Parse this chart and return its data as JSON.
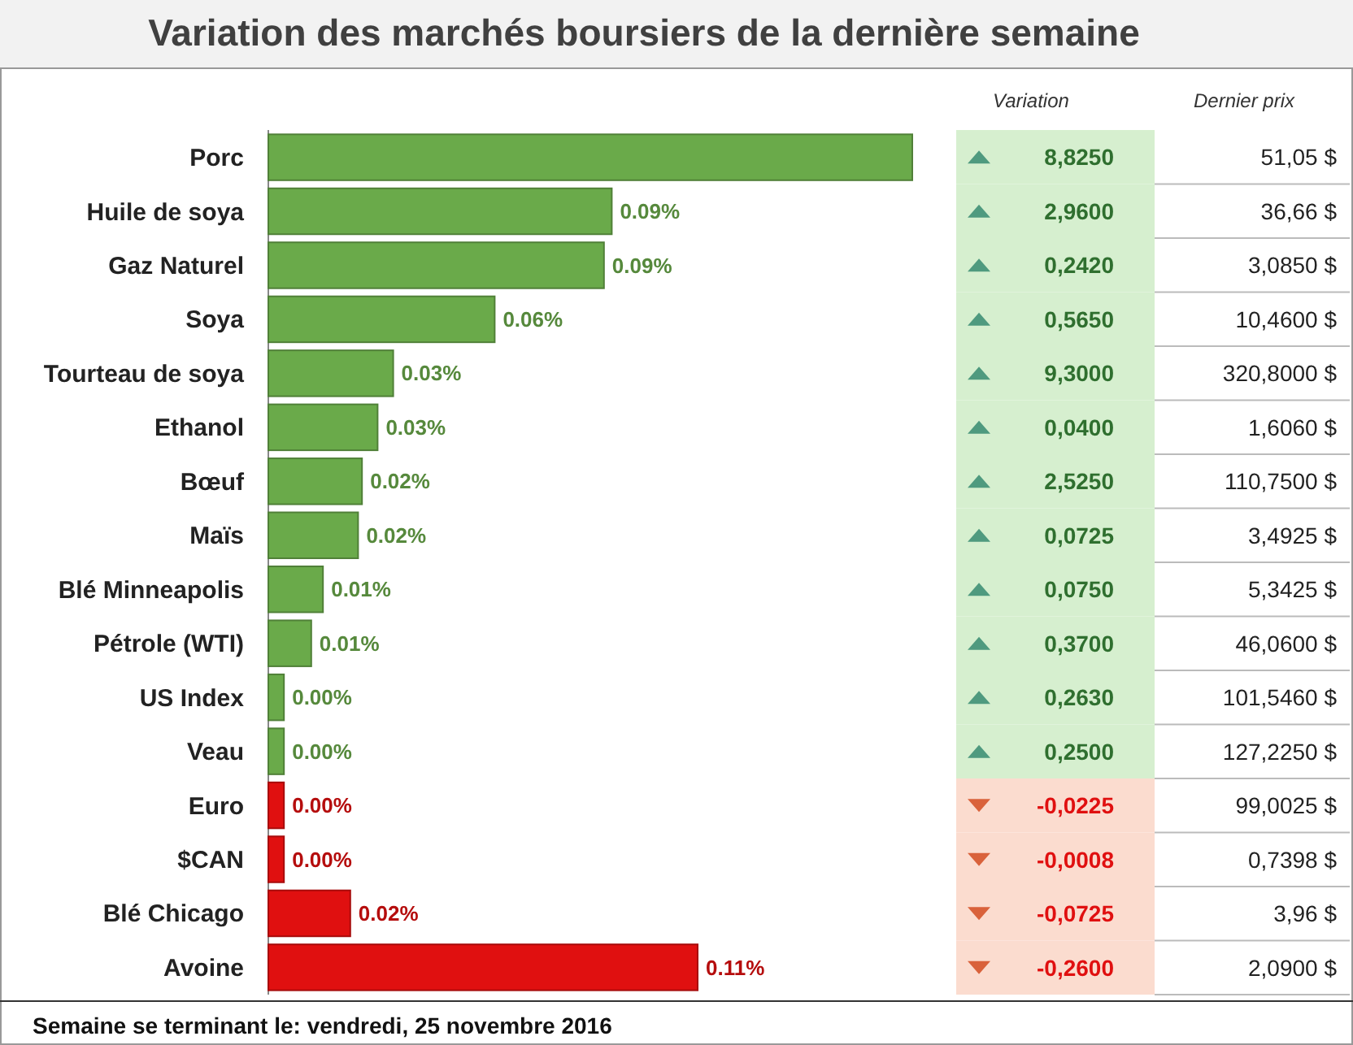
{
  "chart_data": {
    "type": "bar",
    "orientation": "horizontal",
    "title": "Variation des marchés boursiers de la dernière semaine",
    "categories": [
      "Porc",
      "Huile de soya",
      "Gaz Naturel",
      "Soya",
      "Tourteau de soya",
      "Ethanol",
      "Bœuf",
      "Maïs",
      "Blé Minneapolis",
      "Pétrole (WTI)",
      "US Index",
      "Veau",
      "Euro",
      "$CAN",
      "Blé Chicago",
      "Avoine"
    ],
    "values": [
      0.165,
      0.088,
      0.086,
      0.058,
      0.032,
      0.028,
      0.024,
      0.023,
      0.014,
      0.011,
      0.004,
      0.004,
      0.004,
      0.004,
      0.021,
      0.11
    ],
    "colors": [
      "#6aaa4a",
      "#6aaa4a",
      "#6aaa4a",
      "#6aaa4a",
      "#6aaa4a",
      "#6aaa4a",
      "#6aaa4a",
      "#6aaa4a",
      "#6aaa4a",
      "#6aaa4a",
      "#6aaa4a",
      "#6aaa4a",
      "#e01010",
      "#e01010",
      "#e01010",
      "#e01010"
    ],
    "value_labels": [
      null,
      "0.09%",
      "0.09%",
      "0.06%",
      "0.03%",
      "0.03%",
      "0.02%",
      "0.02%",
      "0.01%",
      "0.01%",
      "0.00%",
      "0.00%",
      "0.00%",
      "0.00%",
      "0.02%",
      "0.11%"
    ],
    "annotations": [
      "Semaine se terminant le: vendredi, 25 novembre 2016",
      "Variation",
      "Dernier prix",
      "8,8250",
      "51,05 $",
      "2,9600",
      "36,66 $",
      "0,2420",
      "3,0850 $",
      "0,5650",
      "10,4600 $",
      "9,3000",
      "320,8000 $",
      "0,0400",
      "1,6060 $",
      "2,5250",
      "110,7500 $",
      "0,0725",
      "3,4925 $",
      "0,0750",
      "5,3425 $",
      "0,3700",
      "46,0600 $",
      "0,2630",
      "101,5460 $",
      "0,2500",
      "127,2250 $",
      "-0,0225",
      "99,0025 $",
      "-0,0008",
      "0,7398 $",
      "-0,0725",
      "3,96 $",
      "-0,2600",
      "2,0900 $"
    ],
    "legend": false
  }
}
